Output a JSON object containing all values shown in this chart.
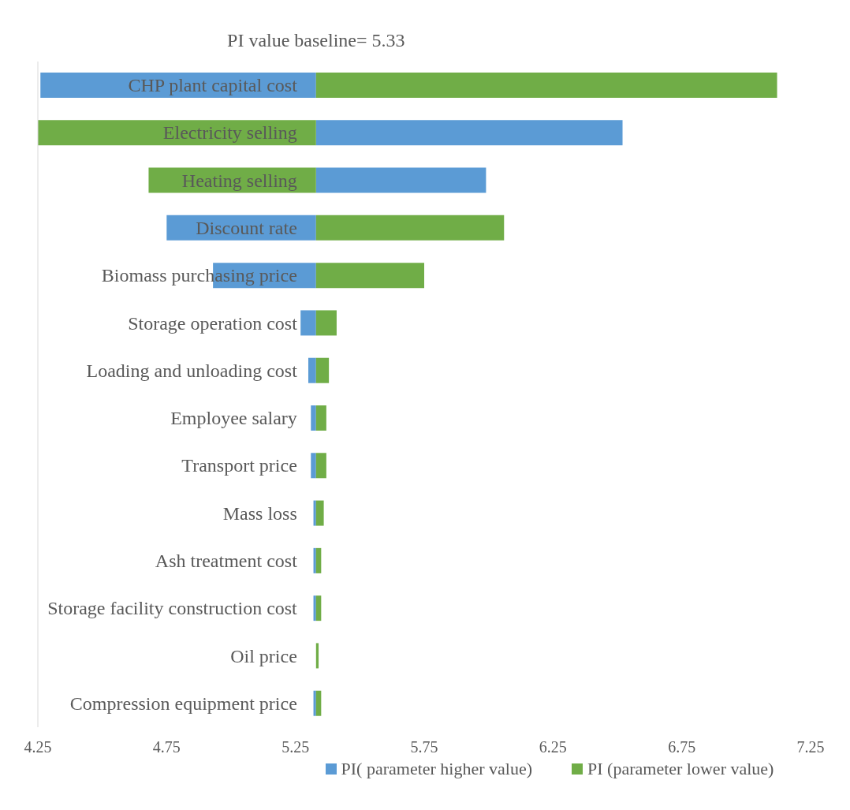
{
  "chart_data": {
    "type": "bar",
    "orientation": "horizontal",
    "title": "PI value baseline= 5.33",
    "categories": [
      "CHP plant capital cost",
      "Electricity selling",
      "Heating selling",
      "Discount rate",
      "Biomass purchasing price",
      "Storage operation cost",
      "Loading and unloading cost",
      "Employee salary",
      "Transport price",
      "Mass loss",
      "Ash treatment cost",
      "Storage facility construction cost",
      "Oil price",
      "Compression equipment price"
    ],
    "series": [
      {
        "name": "PI( parameter higher value)",
        "color": "#5b9bd5",
        "base": [
          5.33,
          5.33,
          5.33,
          5.33,
          5.33,
          5.33,
          5.33,
          5.33,
          5.33,
          5.33,
          5.33,
          5.33,
          null,
          5.33
        ],
        "values": [
          -1.07,
          1.19,
          0.66,
          -0.58,
          -0.4,
          -0.06,
          -0.03,
          -0.02,
          -0.02,
          -0.01,
          -0.01,
          -0.01,
          null,
          -0.01
        ]
      },
      {
        "name": "PI (parameter lower value)",
        "color": "#70ad47",
        "base": [
          5.33,
          5.33,
          5.33,
          5.33,
          5.33,
          5.33,
          5.33,
          5.33,
          5.33,
          5.33,
          5.33,
          5.33,
          5.33,
          5.33
        ],
        "values": [
          1.79,
          -1.08,
          -0.65,
          0.73,
          0.42,
          0.08,
          0.05,
          0.04,
          0.04,
          0.03,
          0.02,
          0.02,
          0.01,
          0.02
        ]
      }
    ],
    "xlim": [
      4.25,
      7.25
    ],
    "xticks": [
      4.25,
      4.75,
      5.25,
      5.75,
      6.25,
      6.75,
      7.25
    ],
    "legend": "bottom"
  }
}
